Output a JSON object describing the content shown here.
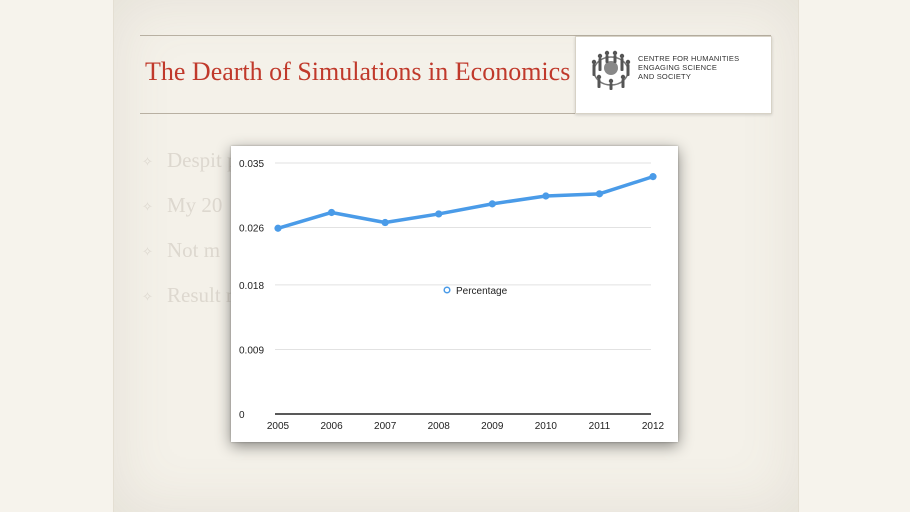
{
  "slide": {
    "title": "The Dearth of Simulations in Economics",
    "logo": {
      "line1": "CENTRE FOR HUMANITIES",
      "line2": "ENGAGING SCIENCE",
      "line3": "AND SOCIETY"
    },
    "bullets": [
      {
        "text": "Despit                                                              ppear not to use                                                                that would                                                               f the tool"
      },
      {
        "text": "My 20"
      },
      {
        "text": "Not m"
      },
      {
        "text": "Result                                                          mulations as defi                                                         mining prope"
      }
    ]
  },
  "chart_data": {
    "type": "line",
    "x": [
      2005,
      2006,
      2007,
      2008,
      2009,
      2010,
      2011,
      2012
    ],
    "series": [
      {
        "name": "Percentage",
        "values": [
          0.0259,
          0.0281,
          0.0267,
          0.0279,
          0.0293,
          0.0304,
          0.0307,
          0.0331
        ],
        "color": "#4a9be8"
      }
    ],
    "yticks": [
      "0",
      "0.009",
      "0.018",
      "0.026",
      "0.035"
    ],
    "ylim": [
      0,
      0.035
    ],
    "xlabel": "",
    "ylabel": "",
    "grid": true,
    "legend_position": "center"
  }
}
